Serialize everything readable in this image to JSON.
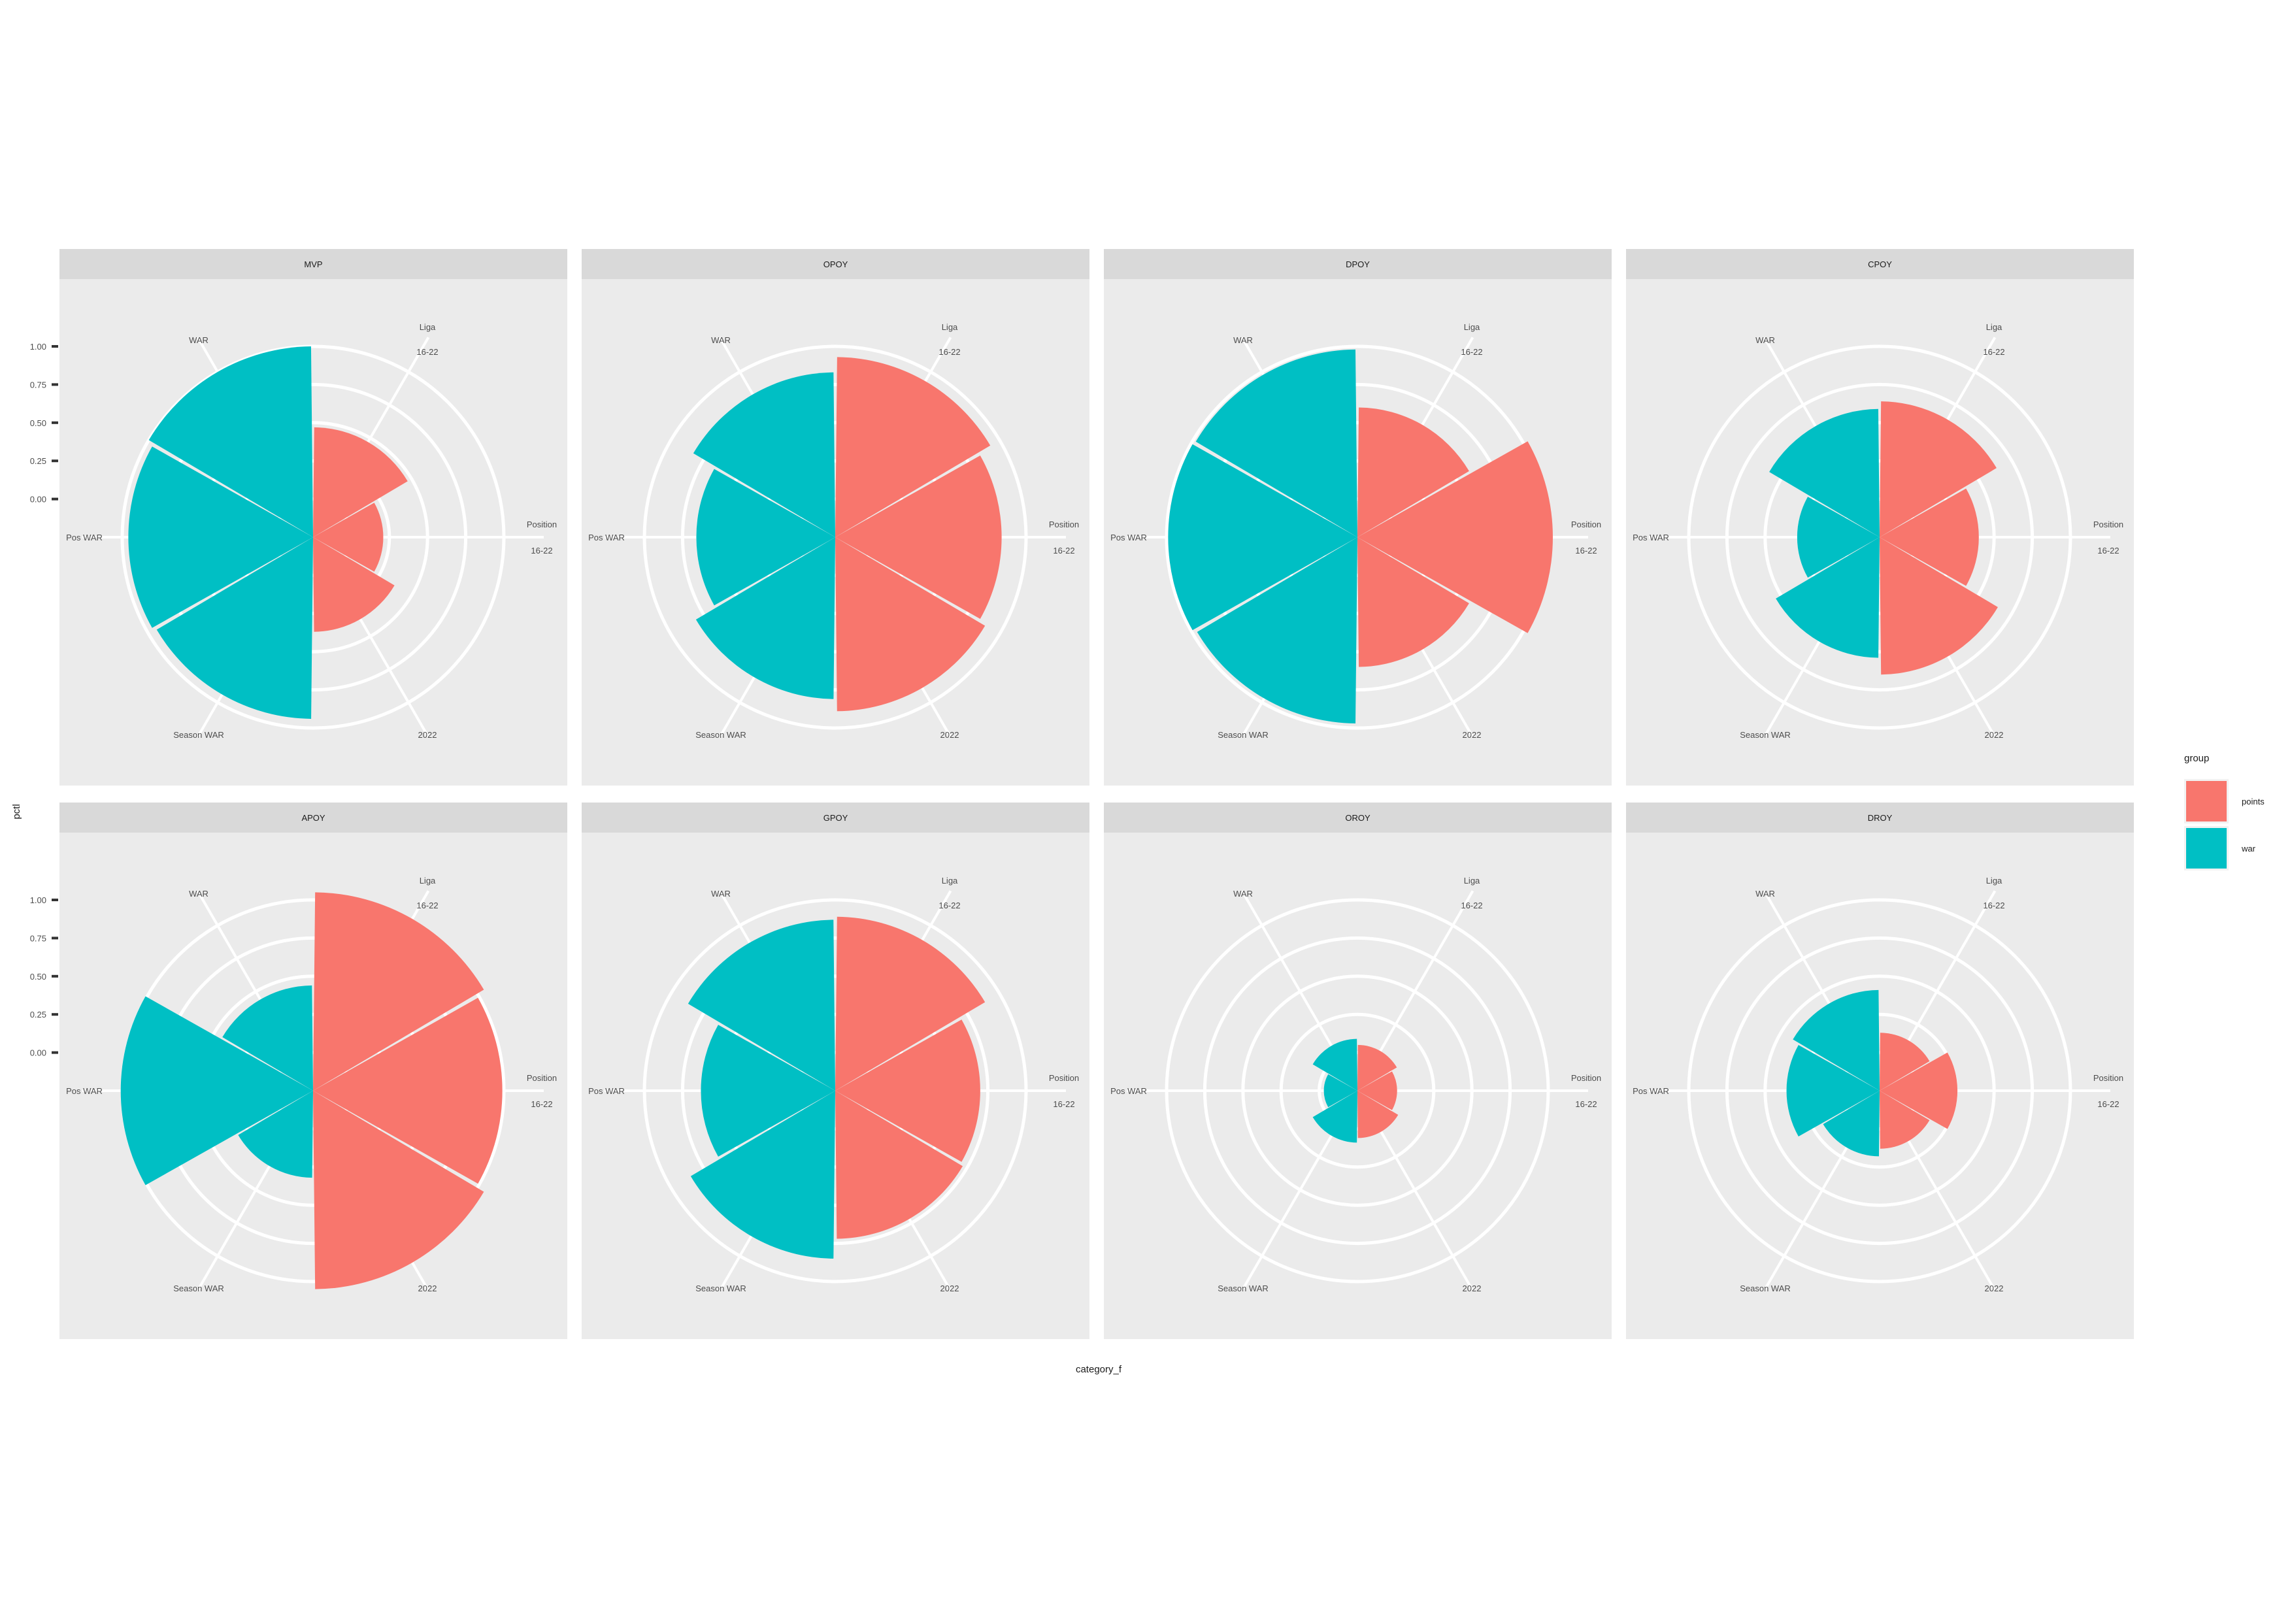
{
  "chart_data": {
    "type": "polar-bar",
    "facet_layout": "4 columns x 2 rows",
    "ylabel": "pctl",
    "xlabel": "category_f",
    "yticks": [
      0.0,
      0.25,
      0.5,
      0.75,
      1.0
    ],
    "y_tick_labels": [
      "0.00",
      "0.25",
      "0.50",
      "0.75",
      "1.00"
    ],
    "ylim": [
      -0.25,
      1.09
    ],
    "categories": [
      {
        "key": "liga",
        "label": "Liga",
        "sub": "16-22"
      },
      {
        "key": "position",
        "label": "Position",
        "sub": "16-22"
      },
      {
        "key": "2022",
        "label": "2022",
        "sub": ""
      },
      {
        "key": "season_war",
        "label": "Season WAR",
        "sub": ""
      },
      {
        "key": "pos_war",
        "label": "Pos WAR",
        "sub": ""
      },
      {
        "key": "war",
        "label": "WAR",
        "sub": ""
      }
    ],
    "legend": {
      "title": "group",
      "position": "right",
      "entries": [
        {
          "key": "points",
          "label": "points",
          "color": "#F8766D"
        },
        {
          "key": "war",
          "label": "war",
          "color": "#00BFC4"
        }
      ]
    },
    "colors": {
      "panel_background": "#EBEBEB",
      "strip_background": "#D9D9D9",
      "grid": "#FFFFFF",
      "text": "#4D4D4D"
    },
    "panels": [
      {
        "title": "MVP",
        "values": {
          "liga": 0.47,
          "position": 0.21,
          "2022": 0.37,
          "season_war": 0.94,
          "pos_war": 0.96,
          "war": 1.0
        }
      },
      {
        "title": "OPOY",
        "values": {
          "liga": 0.93,
          "position": 0.84,
          "2022": 0.89,
          "season_war": 0.81,
          "pos_war": 0.66,
          "war": 0.83
        }
      },
      {
        "title": "DPOY",
        "values": {
          "liga": 0.6,
          "position": 1.03,
          "2022": 0.6,
          "season_war": 0.97,
          "pos_war": 0.99,
          "war": 0.98
        }
      },
      {
        "title": "CPOY",
        "values": {
          "liga": 0.64,
          "position": 0.4,
          "2022": 0.65,
          "season_war": 0.54,
          "pos_war": 0.29,
          "war": 0.59
        }
      },
      {
        "title": "APOY",
        "values": {
          "liga": 1.05,
          "position": 0.99,
          "2022": 1.05,
          "season_war": 0.32,
          "pos_war": 1.01,
          "war": 0.44
        }
      },
      {
        "title": "GPOY",
        "values": {
          "liga": 0.89,
          "position": 0.7,
          "2022": 0.72,
          "season_war": 0.85,
          "pos_war": 0.63,
          "war": 0.87
        }
      },
      {
        "title": "OROY",
        "values": {
          "liga": 0.05,
          "position": 0.01,
          "2022": 0.06,
          "season_war": 0.09,
          "pos_war": -0.03,
          "war": 0.09
        }
      },
      {
        "title": "DROY",
        "values": {
          "liga": 0.13,
          "position": 0.26,
          "2022": 0.13,
          "season_war": 0.18,
          "pos_war": 0.36,
          "war": 0.41
        }
      }
    ]
  }
}
